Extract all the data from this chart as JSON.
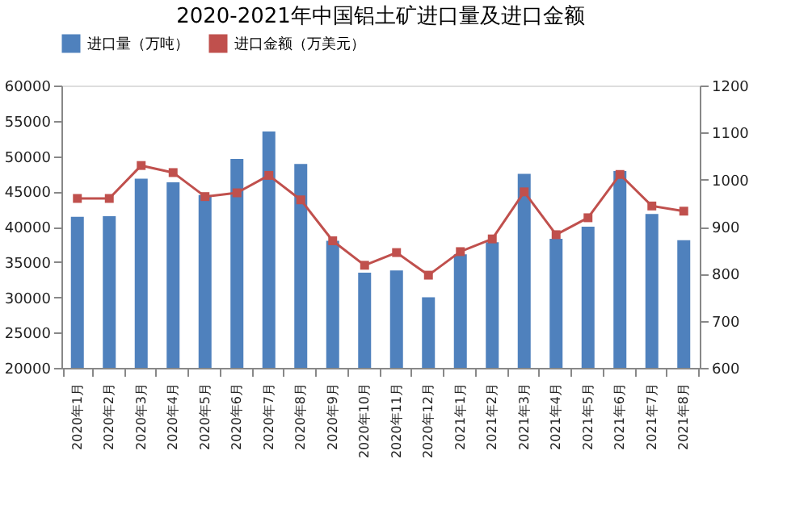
{
  "chart_data": {
    "type": "bar",
    "title": "2020-2021年中国铝土矿进口量及进口金额",
    "categories": [
      "2020年1月",
      "2020年2月",
      "2020年3月",
      "2020年4月",
      "2020年5月",
      "2020年6月",
      "2020年7月",
      "2020年8月",
      "2020年9月",
      "2020年10月",
      "2020年11月",
      "2020年12月",
      "2021年1月",
      "2021年2月",
      "2021年3月",
      "2021年4月",
      "2021年5月",
      "2021年6月",
      "2021年7月",
      "2021年8月"
    ],
    "series": [
      {
        "name": "进口量（万吨）",
        "color": "#4f81bd",
        "values": [
          41400,
          41500,
          46800,
          46300,
          44500,
          49600,
          53500,
          48900,
          38000,
          33500,
          33800,
          30000,
          36100,
          37800,
          47500,
          38300,
          40000,
          47900,
          41800,
          38100
        ]
      },
      {
        "name": "进口金额（万美元）",
        "type": "line",
        "axis": "y2",
        "color": "#c0504d",
        "values": [
          960,
          960,
          1030,
          1015,
          964,
          972,
          1009,
          957,
          870,
          818,
          845,
          797,
          847,
          874,
          974,
          883,
          919,
          1011,
          944,
          933
        ]
      }
    ],
    "ylim": [
      20000,
      60000
    ],
    "yticks": [
      20000,
      25000,
      30000,
      35000,
      40000,
      45000,
      50000,
      55000,
      60000
    ],
    "y2lim": [
      600,
      1200
    ],
    "y2ticks": [
      600,
      700,
      800,
      900,
      1000,
      1100,
      1200
    ],
    "legend": "top",
    "marker": "square",
    "grid": false
  }
}
